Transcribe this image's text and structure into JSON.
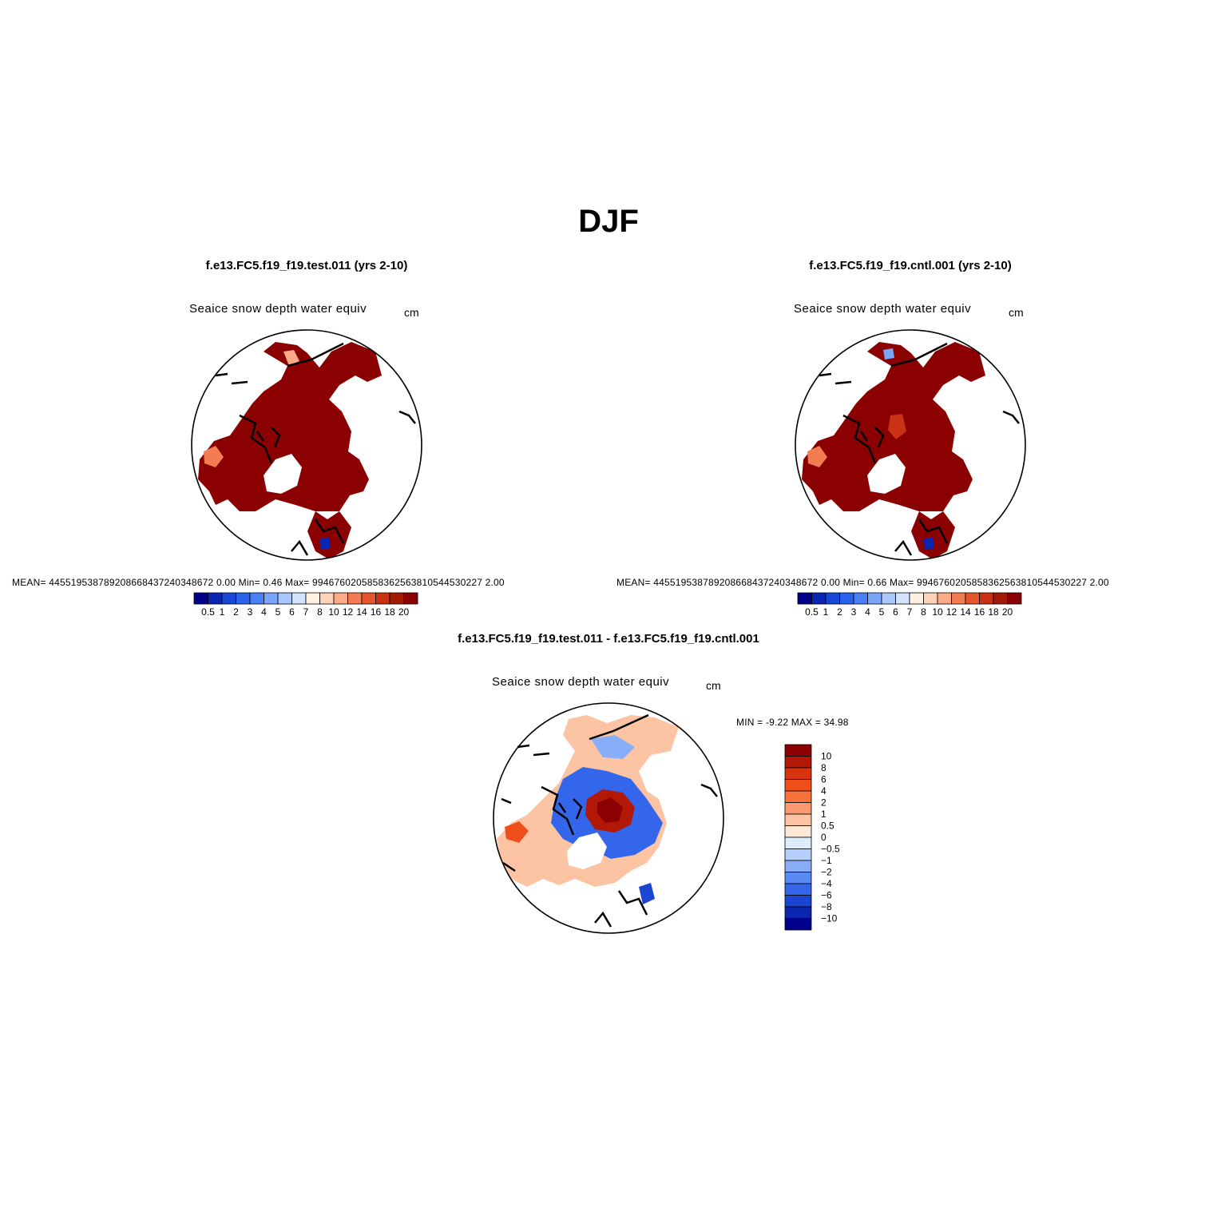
{
  "figure": {
    "title": "DJF"
  },
  "panels": [
    {
      "case_title": "f.e13.FC5.f19_f19.test.011 (yrs 2-10)",
      "variable": "Seaice snow depth water equiv",
      "units": "cm",
      "stats": "MEAN= 445519538789208668437240348672 0.00   Min=    0.46   Max= 9946760205858362563810544530227 2.00"
    },
    {
      "case_title": "f.e13.FC5.f19_f19.cntl.001 (yrs 2-10)",
      "variable": "Seaice snow depth water equiv",
      "units": "cm",
      "stats": "MEAN= 445519538789208668437240348672 0.00   Min=    0.66   Max= 9946760205858362563810544530227 2.00"
    },
    {
      "case_title": "f.e13.FC5.f19_f19.test.011 - f.e13.FC5.f19_f19.cntl.001",
      "variable": "Seaice snow depth water equiv",
      "units": "cm",
      "stats": "MIN =   -9.22 MAX =   34.98"
    }
  ],
  "colorbars": {
    "absolute": {
      "labels": [
        "0.5",
        "1",
        "2",
        "3",
        "4",
        "5",
        "6",
        "7",
        "8",
        "10",
        "12",
        "14",
        "16",
        "18",
        "20"
      ],
      "colors": [
        "#00008b",
        "#0a24b4",
        "#1746d8",
        "#2b62ec",
        "#4a80f7",
        "#7ba4fb",
        "#a9c6fd",
        "#d2e4fe",
        "#fff0e2",
        "#fdd3b8",
        "#fbab85",
        "#f47c52",
        "#e6552b",
        "#c93313",
        "#a31a05",
        "#8b0000"
      ]
    },
    "difference": {
      "labels": [
        "10",
        "8",
        "6",
        "4",
        "2",
        "1",
        "0.5",
        "0",
        "−0.5",
        "−1",
        "−2",
        "−4",
        "−6",
        "−8",
        "−10"
      ],
      "colors": [
        "#8b0000",
        "#b31705",
        "#d8330f",
        "#f04f1c",
        "#f9713c",
        "#fb9a70",
        "#fdc4a4",
        "#ffe8d6",
        "#dcecfd",
        "#b4d0fc",
        "#88aefa",
        "#5a8af4",
        "#3366ea",
        "#1a46d2",
        "#0a26b0",
        "#00008b"
      ]
    }
  }
}
